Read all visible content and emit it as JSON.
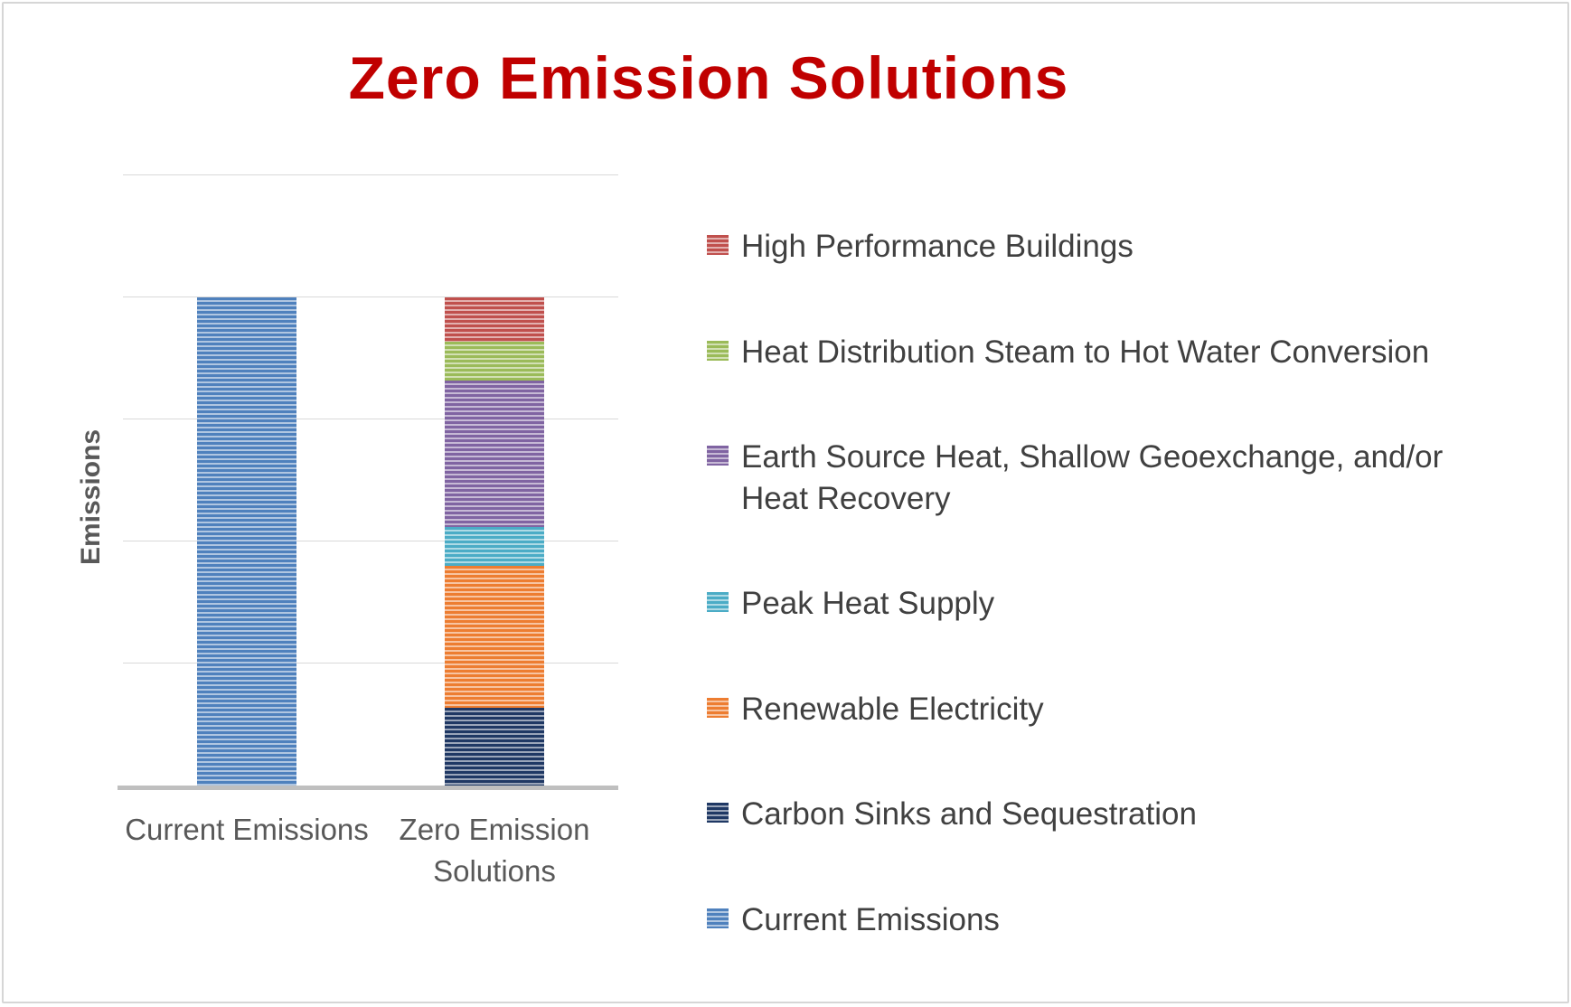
{
  "title": "Zero Emission Solutions",
  "title_color": "#c00000",
  "chart_data": {
    "type": "bar",
    "subtype": "stacked",
    "title": "Zero Emission Solutions",
    "xlabel": "",
    "ylabel": "Emissions",
    "categories": [
      "Current Emissions",
      "Zero Emission Solutions"
    ],
    "ylim": [
      0,
      125
    ],
    "gridline_values": [
      25,
      50,
      75,
      100,
      125
    ],
    "grid": true,
    "y_tick_labels_visible": false,
    "legend_position": "right",
    "bar_fill_pattern": "light-horizontal-stripes",
    "series": [
      {
        "name": "Current Emissions",
        "color": "#4f81bd",
        "values": [
          100,
          0
        ]
      },
      {
        "name": "Carbon Sinks and Sequestration",
        "color": "#1f3864",
        "values": [
          0,
          16
        ]
      },
      {
        "name": "Renewable Electricity",
        "color": "#ed7d31",
        "values": [
          0,
          29
        ]
      },
      {
        "name": "Peak Heat Supply",
        "color": "#4bacc6",
        "values": [
          0,
          8
        ]
      },
      {
        "name": "Earth Source Heat, Shallow Geoexchange, and/or Heat Recovery",
        "color": "#8064a2",
        "values": [
          0,
          30
        ]
      },
      {
        "name": "Heat Distribution Steam to Hot Water Conversion",
        "color": "#9bbb59",
        "values": [
          0,
          8
        ]
      },
      {
        "name": "High Performance Buildings",
        "color": "#c0504d",
        "values": [
          0,
          9
        ]
      }
    ]
  },
  "legend": {
    "items": [
      {
        "label": "High Performance Buildings",
        "color": "#c0504d"
      },
      {
        "label": "Heat Distribution Steam to Hot Water Conversion",
        "color": "#9bbb59"
      },
      {
        "label": "Earth Source Heat, Shallow Geoexchange, and/or Heat Recovery",
        "color": "#8064a2"
      },
      {
        "label": "Peak Heat Supply",
        "color": "#4bacc6"
      },
      {
        "label": "Renewable Electricity",
        "color": "#ed7d31"
      },
      {
        "label": "Carbon Sinks and Sequestration",
        "color": "#1f3864"
      },
      {
        "label": "Current Emissions",
        "color": "#4f81bd"
      }
    ]
  }
}
